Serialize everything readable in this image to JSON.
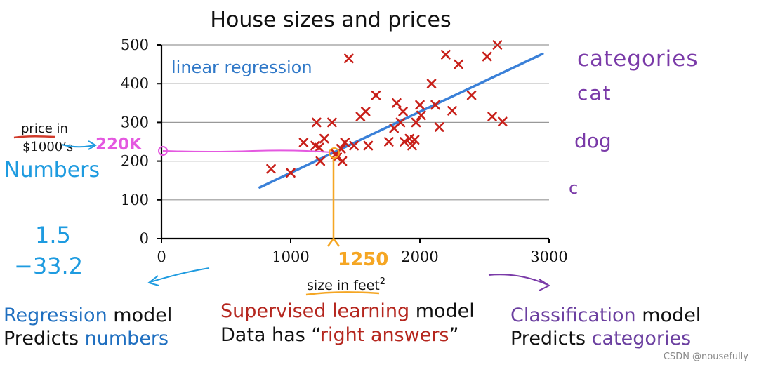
{
  "chart_data": {
    "type": "scatter",
    "title": "House sizes and prices",
    "xlabel": "size in feet",
    "xlabel_superscript": "2",
    "ylabel_line1": "price in",
    "ylabel_line2": "$1000’s",
    "xlim": [
      0,
      3000
    ],
    "ylim": [
      0,
      500
    ],
    "xticks": [
      "0",
      "1000",
      "2000",
      "3000"
    ],
    "yticks": [
      "0",
      "100",
      "200",
      "300",
      "400",
      "500"
    ],
    "grid": true,
    "points": [
      [
        848,
        180
      ],
      [
        1000,
        170
      ],
      [
        1100,
        248
      ],
      [
        1190,
        240
      ],
      [
        1200,
        300
      ],
      [
        1220,
        235
      ],
      [
        1230,
        200
      ],
      [
        1260,
        258
      ],
      [
        1320,
        300
      ],
      [
        1350,
        218
      ],
      [
        1360,
        210
      ],
      [
        1390,
        232
      ],
      [
        1400,
        200
      ],
      [
        1420,
        248
      ],
      [
        1450,
        465
      ],
      [
        1490,
        240
      ],
      [
        1540,
        315
      ],
      [
        1580,
        328
      ],
      [
        1600,
        240
      ],
      [
        1660,
        370
      ],
      [
        1760,
        250
      ],
      [
        1800,
        285
      ],
      [
        1820,
        350
      ],
      [
        1850,
        300
      ],
      [
        1870,
        328
      ],
      [
        1880,
        250
      ],
      [
        1920,
        258
      ],
      [
        1940,
        240
      ],
      [
        1960,
        255
      ],
      [
        1970,
        300
      ],
      [
        2000,
        345
      ],
      [
        2010,
        318
      ],
      [
        2090,
        400
      ],
      [
        2120,
        345
      ],
      [
        2150,
        288
      ],
      [
        2200,
        475
      ],
      [
        2250,
        330
      ],
      [
        2300,
        450
      ],
      [
        2400,
        370
      ],
      [
        2520,
        470
      ],
      [
        2560,
        315
      ],
      [
        2600,
        500
      ],
      [
        2640,
        302
      ]
    ],
    "fit_line": {
      "label": "linear regression",
      "x": [
        760,
        2950
      ],
      "y": [
        132,
        477
      ]
    },
    "annotations": {
      "predicted_x": 1250,
      "predicted_y": 220,
      "predicted_x_label": "1250",
      "predicted_y_label": "220K",
      "left_side_label": "Numbers",
      "left_examples": [
        "1.5",
        "−33.2"
      ],
      "right_side_label": "categories",
      "right_examples": [
        "cat",
        "dog",
        "c"
      ]
    }
  },
  "footer": {
    "left": {
      "line1_highlight": "Regression",
      "line1_rest": " model",
      "line2_start": "Predicts ",
      "line2_highlight": "numbers"
    },
    "center": {
      "line1_highlight": "Supervised learning",
      "line1_rest": " model",
      "line2_start": "Data has “",
      "line2_highlight": "right answers",
      "line2_end": "”"
    },
    "right": {
      "line1_highlight": "Classification",
      "line1_rest": " model",
      "line2_start": "Predicts ",
      "line2_highlight": "categories"
    }
  },
  "watermark": "CSDN @nousefully",
  "colors": {
    "points": "#c8201a",
    "fit_line": "#3a80d8",
    "grid": "#999999",
    "axis": "#000000",
    "handwriting_blue": "#1e9be0",
    "handwriting_orange": "#f5a623",
    "handwriting_pink": "#e458e0",
    "handwriting_purple": "#7a3aa8",
    "handwriting_red": "#d03a2a",
    "regression_blue": "#1f6fc0",
    "supervised_red": "#b5261e",
    "classification_purple": "#6b3fa0",
    "text_dark": "#111111"
  }
}
